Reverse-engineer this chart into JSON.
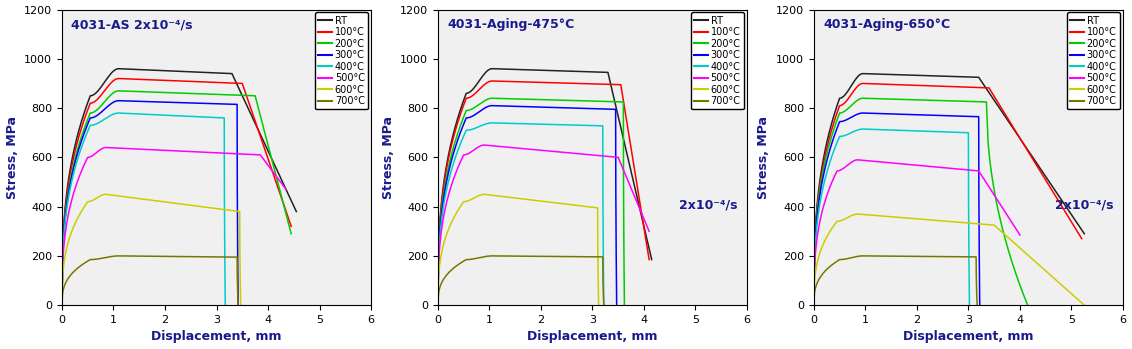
{
  "panels": [
    {
      "title": "4031-AS 2x10⁻⁴/s",
      "strain_rate_label": null,
      "ylabel": "Stress, MPa",
      "xlabel": "Displacement, mm"
    },
    {
      "title": "4031-Aging-475°C",
      "strain_rate_label": "2x10⁻⁴/s",
      "ylabel": "Stress, MPa",
      "xlabel": "Displacement, mm"
    },
    {
      "title": "4031-Aging-650°C",
      "strain_rate_label": "2x10⁻⁴/s",
      "ylabel": "Stress, MPa",
      "xlabel": "Displacement, mm"
    }
  ],
  "temperatures": [
    "RT",
    "100°C",
    "200°C",
    "300°C",
    "400°C",
    "500°C",
    "600°C",
    "700°C"
  ],
  "colors": [
    "#222222",
    "#ff0000",
    "#00cc00",
    "#0000ff",
    "#00cccc",
    "#ff00ff",
    "#cccc00",
    "#777700"
  ],
  "ylim": [
    0,
    1200
  ],
  "xlim": [
    0,
    6
  ],
  "yticks": [
    0,
    200,
    400,
    600,
    800,
    1000,
    1200
  ],
  "xticks": [
    0,
    1,
    2,
    3,
    4,
    5,
    6
  ],
  "background_color": "#f0f0f0",
  "curves": {
    "panel0": {
      "RT": {
        "x_end_rise": 0.55,
        "x_peak": 1.1,
        "x_flat_end": 3.3,
        "x_break": 4.55,
        "y_yield": 850,
        "y_peak": 960,
        "y_flat": 940,
        "y_break": 380,
        "drop_to_zero": false
      },
      "100C": {
        "x_end_rise": 0.55,
        "x_peak": 1.1,
        "x_flat_end": 3.5,
        "x_break": 4.45,
        "y_yield": 820,
        "y_peak": 920,
        "y_flat": 900,
        "y_break": 320,
        "drop_to_zero": false
      },
      "200C": {
        "x_end_rise": 0.55,
        "x_peak": 1.1,
        "x_flat_end": 3.75,
        "x_break": 4.45,
        "y_yield": 780,
        "y_peak": 870,
        "y_flat": 850,
        "y_break": 290,
        "drop_to_zero": false
      },
      "300C": {
        "x_end_rise": 0.55,
        "x_peak": 1.1,
        "x_flat_end": 3.4,
        "x_break": 3.42,
        "y_yield": 760,
        "y_peak": 830,
        "y_flat": 815,
        "y_break": 0,
        "drop_to_zero": true
      },
      "400C": {
        "x_end_rise": 0.55,
        "x_peak": 1.1,
        "x_flat_end": 3.15,
        "x_break": 3.17,
        "y_yield": 730,
        "y_peak": 780,
        "y_flat": 760,
        "y_break": 0,
        "drop_to_zero": true
      },
      "500C": {
        "x_end_rise": 0.5,
        "x_peak": 0.85,
        "x_flat_end": 3.85,
        "x_break": 4.35,
        "y_yield": 600,
        "y_peak": 640,
        "y_flat": 610,
        "y_break": 470,
        "drop_to_zero": false
      },
      "600C": {
        "x_end_rise": 0.5,
        "x_peak": 0.85,
        "x_flat_end": 3.45,
        "x_break": 3.47,
        "y_yield": 420,
        "y_peak": 450,
        "y_flat": 380,
        "y_break": 0,
        "drop_to_zero": true
      },
      "700C": {
        "x_end_rise": 0.55,
        "x_peak": 1.1,
        "x_flat_end": 3.4,
        "x_break": 3.42,
        "y_yield": 185,
        "y_peak": 200,
        "y_flat": 195,
        "y_break": 0,
        "drop_to_zero": true
      }
    },
    "panel1": {
      "RT": {
        "x_end_rise": 0.55,
        "x_peak": 1.05,
        "x_flat_end": 3.3,
        "x_break": 4.15,
        "y_yield": 860,
        "y_peak": 960,
        "y_flat": 945,
        "y_break": 185,
        "drop_to_zero": false
      },
      "100C": {
        "x_end_rise": 0.55,
        "x_peak": 1.05,
        "x_flat_end": 3.55,
        "x_break": 4.1,
        "y_yield": 840,
        "y_peak": 910,
        "y_flat": 895,
        "y_break": 185,
        "drop_to_zero": false
      },
      "200C": {
        "x_end_rise": 0.55,
        "x_peak": 1.05,
        "x_flat_end": 3.6,
        "x_break": 3.62,
        "y_yield": 790,
        "y_peak": 840,
        "y_flat": 825,
        "y_break": 0,
        "drop_to_zero": true
      },
      "300C": {
        "x_end_rise": 0.55,
        "x_peak": 1.05,
        "x_flat_end": 3.45,
        "x_break": 3.47,
        "y_yield": 760,
        "y_peak": 810,
        "y_flat": 795,
        "y_break": 0,
        "drop_to_zero": true
      },
      "400C": {
        "x_end_rise": 0.55,
        "x_peak": 1.05,
        "x_flat_end": 3.2,
        "x_break": 3.22,
        "y_yield": 710,
        "y_peak": 740,
        "y_flat": 728,
        "y_break": 0,
        "drop_to_zero": true
      },
      "500C": {
        "x_end_rise": 0.5,
        "x_peak": 0.9,
        "x_flat_end": 3.5,
        "x_break": 4.1,
        "y_yield": 610,
        "y_peak": 650,
        "y_flat": 600,
        "y_break": 300,
        "drop_to_zero": false
      },
      "600C": {
        "x_end_rise": 0.5,
        "x_peak": 0.9,
        "x_flat_end": 3.1,
        "x_break": 3.12,
        "y_yield": 420,
        "y_peak": 450,
        "y_flat": 395,
        "y_break": 0,
        "drop_to_zero": true
      },
      "700C": {
        "x_end_rise": 0.55,
        "x_peak": 1.05,
        "x_flat_end": 3.2,
        "x_break": 3.22,
        "y_yield": 185,
        "y_peak": 200,
        "y_flat": 196,
        "y_break": 0,
        "drop_to_zero": true
      }
    },
    "panel2": {
      "RT": {
        "x_end_rise": 0.5,
        "x_peak": 0.95,
        "x_flat_end": 3.2,
        "x_break": 5.25,
        "y_yield": 840,
        "y_peak": 940,
        "y_flat": 925,
        "y_break": 290,
        "drop_to_zero": false
      },
      "100C": {
        "x_end_rise": 0.5,
        "x_peak": 0.95,
        "x_flat_end": 3.4,
        "x_break": 5.2,
        "y_yield": 810,
        "y_peak": 900,
        "y_flat": 882,
        "y_break": 270,
        "drop_to_zero": false
      },
      "200C": {
        "x_end_rise": 0.5,
        "x_peak": 0.95,
        "x_flat_end": 3.35,
        "x_break": 4.15,
        "y_yield": 780,
        "y_peak": 840,
        "y_flat": 825,
        "y_break": 0,
        "drop_to_zero": true
      },
      "300C": {
        "x_end_rise": 0.5,
        "x_peak": 0.95,
        "x_flat_end": 3.2,
        "x_break": 3.22,
        "y_yield": 745,
        "y_peak": 780,
        "y_flat": 765,
        "y_break": 0,
        "drop_to_zero": true
      },
      "400C": {
        "x_end_rise": 0.5,
        "x_peak": 0.95,
        "x_flat_end": 3.0,
        "x_break": 3.02,
        "y_yield": 685,
        "y_peak": 715,
        "y_flat": 700,
        "y_break": 0,
        "drop_to_zero": true
      },
      "500C": {
        "x_end_rise": 0.45,
        "x_peak": 0.85,
        "x_flat_end": 3.2,
        "x_break": 4.0,
        "y_yield": 545,
        "y_peak": 590,
        "y_flat": 545,
        "y_break": 285,
        "drop_to_zero": false
      },
      "600C": {
        "x_end_rise": 0.45,
        "x_peak": 0.85,
        "x_flat_end": 3.5,
        "x_break": 5.25,
        "y_yield": 340,
        "y_peak": 370,
        "y_flat": 325,
        "y_break": 0,
        "drop_to_zero": false
      },
      "700C": {
        "x_end_rise": 0.5,
        "x_peak": 0.95,
        "x_flat_end": 3.15,
        "x_break": 3.17,
        "y_yield": 185,
        "y_peak": 200,
        "y_flat": 196,
        "y_break": 0,
        "drop_to_zero": true
      }
    }
  }
}
